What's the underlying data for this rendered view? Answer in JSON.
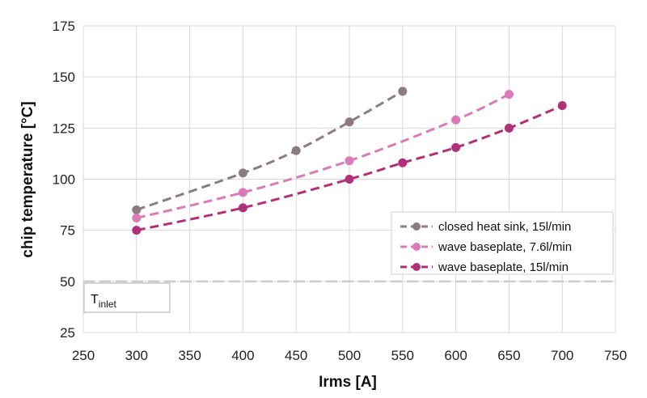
{
  "chart_data": {
    "type": "line",
    "xlabel": "Irms  [A]",
    "ylabel": "chip temperature  [°C]",
    "xlim": [
      250,
      750
    ],
    "ylim": [
      25,
      175
    ],
    "xticks": [
      250,
      300,
      350,
      400,
      450,
      500,
      550,
      600,
      650,
      700,
      750
    ],
    "yticks": [
      25,
      50,
      75,
      100,
      125,
      150,
      175
    ],
    "grid": true,
    "legend_position": "right",
    "series": [
      {
        "name": "closed heat sink, 15l/min",
        "color": "#8c7b80",
        "x": [
          300,
          400,
          450,
          500,
          550
        ],
        "y": [
          85,
          103,
          114,
          128,
          143
        ]
      },
      {
        "name": "wave baseplate, 7.6l/min",
        "color": "#db7ab8",
        "x": [
          300,
          400,
          500,
          600,
          650
        ],
        "y": [
          81,
          93.5,
          109,
          129,
          141.5
        ]
      },
      {
        "name": "wave baseplate, 15l/min",
        "color": "#b0307a",
        "x": [
          300,
          400,
          500,
          550,
          600,
          650,
          700
        ],
        "y": [
          75,
          86,
          100,
          108,
          115.5,
          125,
          136
        ]
      }
    ],
    "reference_line": {
      "y": 50,
      "color": "#cccccc",
      "label": "T",
      "label_subscript": "inlet"
    }
  }
}
